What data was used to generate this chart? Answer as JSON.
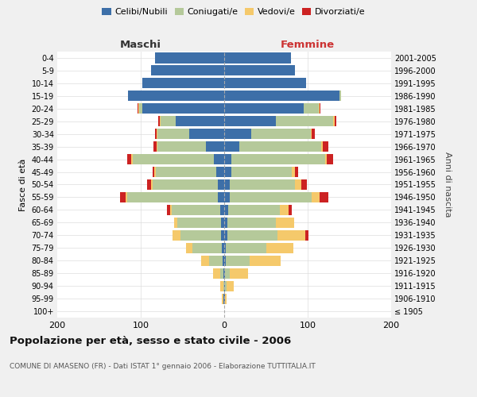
{
  "age_groups": [
    "100+",
    "95-99",
    "90-94",
    "85-89",
    "80-84",
    "75-79",
    "70-74",
    "65-69",
    "60-64",
    "55-59",
    "50-54",
    "45-49",
    "40-44",
    "35-39",
    "30-34",
    "25-29",
    "20-24",
    "15-19",
    "10-14",
    "5-9",
    "0-4"
  ],
  "birth_years": [
    "≤ 1905",
    "1906-1910",
    "1911-1915",
    "1916-1920",
    "1921-1925",
    "1926-1930",
    "1931-1935",
    "1936-1940",
    "1941-1945",
    "1946-1950",
    "1951-1955",
    "1956-1960",
    "1961-1965",
    "1966-1970",
    "1971-1975",
    "1976-1980",
    "1981-1985",
    "1986-1990",
    "1991-1995",
    "1996-2000",
    "2001-2005"
  ],
  "colors": {
    "celibi": "#3d6fa8",
    "coniugati": "#b5c99a",
    "vedovi": "#f5c96b",
    "divorziati": "#cc2222"
  },
  "maschi": {
    "celibi": [
      0,
      1,
      0,
      1,
      2,
      3,
      4,
      4,
      5,
      8,
      8,
      10,
      12,
      22,
      42,
      58,
      98,
      115,
      98,
      88,
      83
    ],
    "coniugati": [
      0,
      0,
      1,
      4,
      16,
      35,
      48,
      52,
      58,
      108,
      78,
      72,
      98,
      58,
      38,
      18,
      4,
      0,
      0,
      0,
      0
    ],
    "vedovi": [
      0,
      2,
      4,
      8,
      10,
      8,
      10,
      4,
      2,
      2,
      2,
      2,
      1,
      1,
      1,
      1,
      1,
      0,
      0,
      0,
      0
    ],
    "divorziati": [
      0,
      0,
      0,
      0,
      0,
      0,
      0,
      0,
      4,
      7,
      4,
      2,
      5,
      4,
      2,
      2,
      1,
      0,
      0,
      0,
      0
    ]
  },
  "femmine": {
    "celibi": [
      0,
      1,
      1,
      1,
      2,
      2,
      4,
      4,
      5,
      7,
      7,
      9,
      9,
      18,
      32,
      62,
      95,
      138,
      98,
      85,
      80
    ],
    "coniugati": [
      0,
      0,
      2,
      6,
      28,
      48,
      60,
      58,
      62,
      98,
      78,
      72,
      112,
      98,
      72,
      68,
      18,
      2,
      0,
      0,
      0
    ],
    "vedovi": [
      0,
      2,
      8,
      22,
      38,
      33,
      33,
      22,
      10,
      9,
      7,
      4,
      2,
      2,
      1,
      2,
      1,
      0,
      0,
      0,
      0
    ],
    "divorziati": [
      0,
      0,
      0,
      0,
      0,
      0,
      4,
      0,
      4,
      11,
      7,
      4,
      7,
      7,
      4,
      2,
      1,
      0,
      0,
      0,
      0
    ]
  },
  "xlim": 200,
  "title": "Popolazione per età, sesso e stato civile - 2006",
  "subtitle": "COMUNE DI AMASENO (FR) - Dati ISTAT 1° gennaio 2006 - Elaborazione TUTTITALIA.IT",
  "ylabel_left": "Fasce di età",
  "ylabel_right": "Anni di nascita",
  "xlabel_left": "Maschi",
  "xlabel_right": "Femmine",
  "bg_color": "#f0f0f0",
  "plot_bg": "#ffffff"
}
